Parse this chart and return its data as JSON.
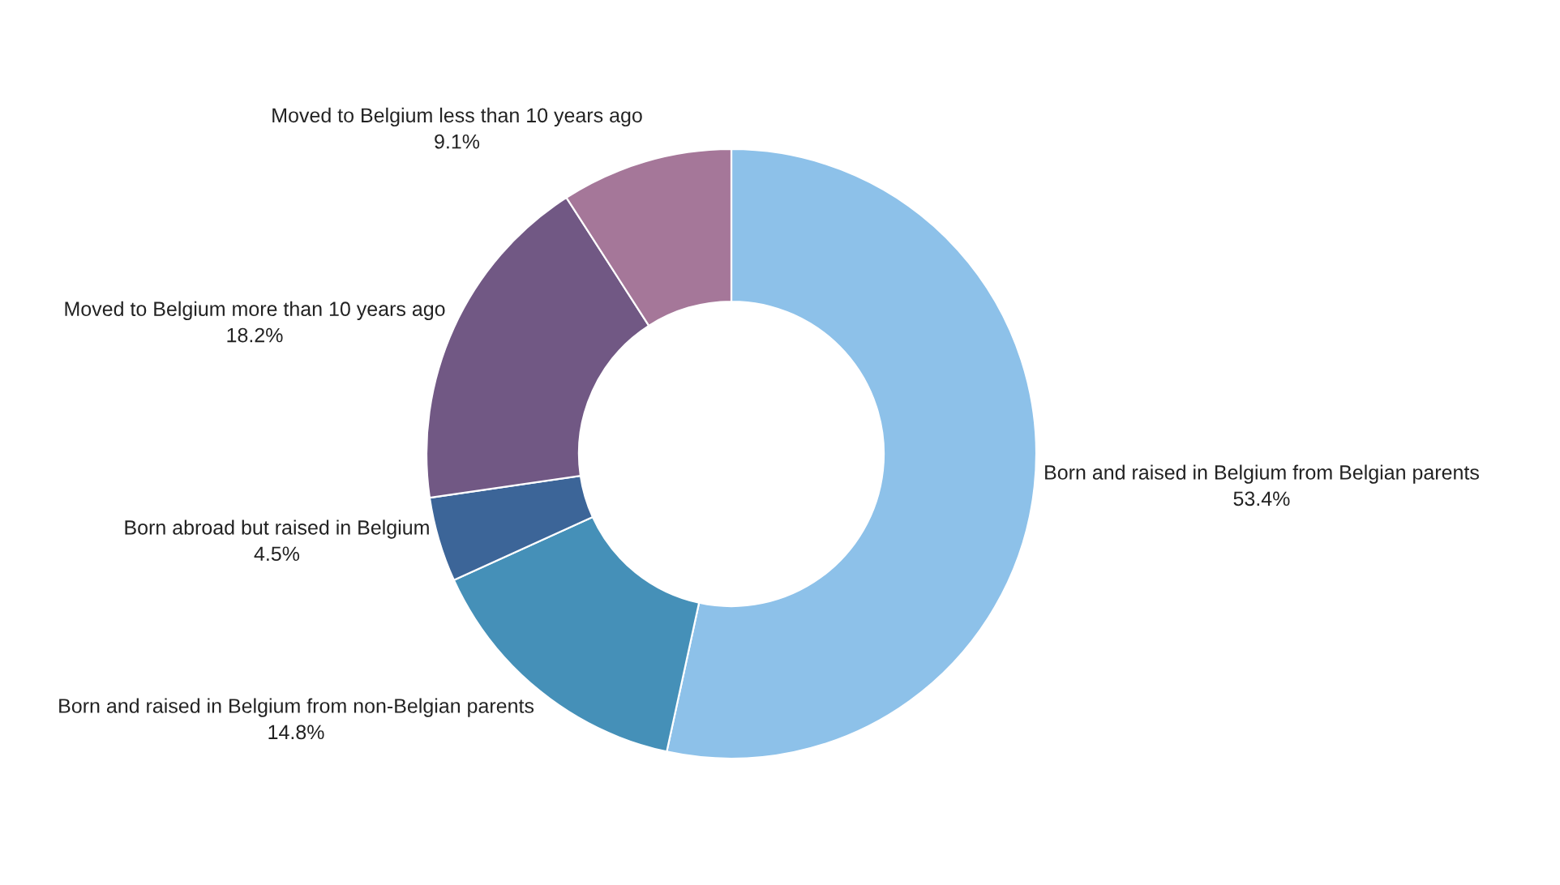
{
  "chart_data": {
    "type": "donut",
    "categories": [
      "Born and raised in Belgium from Belgian parents",
      "Born and raised in Belgium from non-Belgian parents",
      "Born abroad but raised in Belgium",
      "Moved to Belgium more than 10 years ago",
      "Moved to Belgium less than 10 years ago"
    ],
    "values": [
      53.4,
      14.8,
      4.5,
      18.2,
      9.1
    ],
    "value_labels": [
      "53.4%",
      "14.8%",
      "4.5%",
      "18.2%",
      "9.1%"
    ],
    "colors": [
      "#8dc1e9",
      "#4590b8",
      "#3c6598",
      "#715884",
      "#a57799"
    ],
    "legend": false
  }
}
